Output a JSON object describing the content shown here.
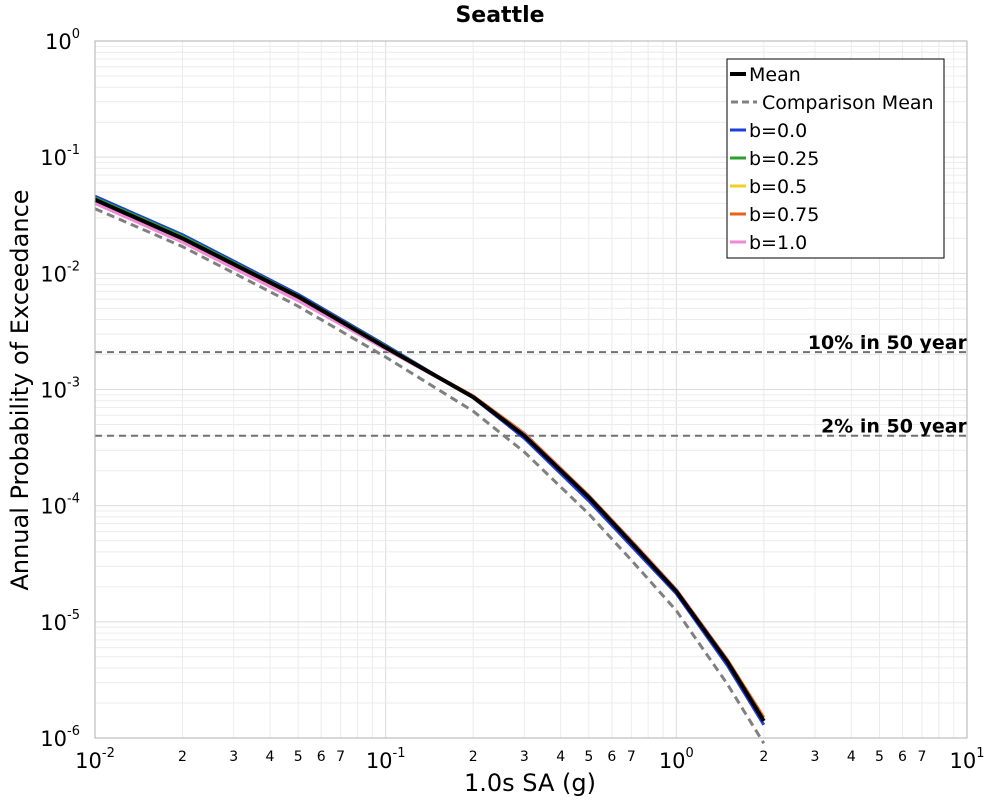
{
  "chart_data": {
    "type": "line",
    "title": "Seattle",
    "xlabel": "1.0s SA (g)",
    "ylabel": "Annual Probability of Exceedance",
    "x_scale": "log",
    "y_scale": "log",
    "xlim": [
      0.01,
      10
    ],
    "ylim": [
      1e-06,
      1
    ],
    "grid": true,
    "legend_position": "top-right",
    "x_major_ticks": [
      {
        "base": "10",
        "exp": "-2",
        "value": 0.01
      },
      {
        "base": "10",
        "exp": "-1",
        "value": 0.1
      },
      {
        "base": "10",
        "exp": "0",
        "value": 1
      },
      {
        "base": "10",
        "exp": "1",
        "value": 10
      }
    ],
    "y_major_ticks": [
      {
        "base": "10",
        "exp": "0",
        "value": 1
      },
      {
        "base": "10",
        "exp": "-1",
        "value": 0.1
      },
      {
        "base": "10",
        "exp": "-2",
        "value": 0.01
      },
      {
        "base": "10",
        "exp": "-3",
        "value": 0.001
      },
      {
        "base": "10",
        "exp": "-4",
        "value": 0.0001
      },
      {
        "base": "10",
        "exp": "-5",
        "value": 1e-05
      },
      {
        "base": "10",
        "exp": "-6",
        "value": 1e-06
      }
    ],
    "x_minor_tick_labels": [
      "2",
      "3",
      "4",
      "5",
      "6",
      "7"
    ],
    "reference_lines": [
      {
        "label": "10% in 50 year",
        "y": 0.0021
      },
      {
        "label": "2% in 50 year",
        "y": 0.0004
      }
    ],
    "series": [
      {
        "name": "b=0.0",
        "color": "#1f3fd8",
        "style": "solid",
        "points": [
          [
            0.01,
            0.046
          ],
          [
            0.02,
            0.0215
          ],
          [
            0.05,
            0.0066
          ],
          [
            0.1,
            0.0024
          ],
          [
            0.2,
            0.00085
          ],
          [
            0.3,
            0.00038
          ],
          [
            0.5,
            0.00011
          ],
          [
            0.7,
            4.5e-05
          ],
          [
            1.0,
            1.75e-05
          ],
          [
            1.5,
            4.2e-06
          ],
          [
            2.0,
            1.3e-06
          ]
        ]
      },
      {
        "name": "b=0.25",
        "color": "#2ca02c",
        "style": "solid",
        "points": [
          [
            0.01,
            0.0445
          ],
          [
            0.02,
            0.0208
          ],
          [
            0.05,
            0.0064
          ],
          [
            0.1,
            0.00235
          ],
          [
            0.2,
            0.00086
          ],
          [
            0.3,
            0.0004
          ],
          [
            0.5,
            0.000118
          ],
          [
            0.7,
            4.8e-05
          ],
          [
            1.0,
            1.83e-05
          ],
          [
            1.5,
            4.5e-06
          ],
          [
            2.0,
            1.4e-06
          ]
        ]
      },
      {
        "name": "b=0.5",
        "color": "#f0d020",
        "style": "solid",
        "points": [
          [
            0.01,
            0.043
          ],
          [
            0.02,
            0.02
          ],
          [
            0.05,
            0.0062
          ],
          [
            0.1,
            0.0023
          ],
          [
            0.2,
            0.00087
          ],
          [
            0.3,
            0.00041
          ],
          [
            0.5,
            0.00012
          ],
          [
            0.7,
            4.9e-05
          ],
          [
            1.0,
            1.85e-05
          ],
          [
            1.5,
            4.6e-06
          ],
          [
            2.0,
            1.4e-06
          ]
        ]
      },
      {
        "name": "b=0.75",
        "color": "#e8621a",
        "style": "solid",
        "points": [
          [
            0.01,
            0.042
          ],
          [
            0.02,
            0.0195
          ],
          [
            0.05,
            0.0061
          ],
          [
            0.1,
            0.00228
          ],
          [
            0.2,
            0.00088
          ],
          [
            0.3,
            0.00042
          ],
          [
            0.5,
            0.000122
          ],
          [
            0.7,
            5e-05
          ],
          [
            1.0,
            1.9e-05
          ],
          [
            1.5,
            4.7e-06
          ],
          [
            2.0,
            1.5e-06
          ]
        ]
      },
      {
        "name": "b=1.0",
        "color": "#f08ad8",
        "style": "solid",
        "points": [
          [
            0.01,
            0.04
          ],
          [
            0.02,
            0.0185
          ],
          [
            0.05,
            0.0058
          ],
          [
            0.1,
            0.00222
          ],
          [
            0.2,
            0.00086
          ],
          [
            0.3,
            0.00041
          ],
          [
            0.5,
            0.00012
          ],
          [
            0.7,
            4.9e-05
          ],
          [
            1.0,
            1.88e-05
          ],
          [
            1.5,
            4.6e-06
          ],
          [
            2.0,
            1.4e-06
          ]
        ]
      },
      {
        "name": "Comparison Mean",
        "color": "#808080",
        "style": "dashed",
        "points": [
          [
            0.01,
            0.036
          ],
          [
            0.02,
            0.017
          ],
          [
            0.05,
            0.0052
          ],
          [
            0.1,
            0.0019
          ],
          [
            0.2,
            0.00065
          ],
          [
            0.3,
            0.00029
          ],
          [
            0.5,
            8.5e-05
          ],
          [
            0.7,
            3.4e-05
          ],
          [
            1.0,
            1.25e-05
          ],
          [
            1.5,
            2.9e-06
          ],
          [
            2.0,
            9e-07
          ]
        ]
      },
      {
        "name": "Mean",
        "color": "#000000",
        "style": "solid",
        "points": [
          [
            0.01,
            0.043
          ],
          [
            0.02,
            0.02
          ],
          [
            0.05,
            0.0063
          ],
          [
            0.1,
            0.0023
          ],
          [
            0.2,
            0.00086
          ],
          [
            0.3,
            0.0004
          ],
          [
            0.5,
            0.000118
          ],
          [
            0.7,
            4.8e-05
          ],
          [
            1.0,
            1.83e-05
          ],
          [
            1.5,
            4.5e-06
          ],
          [
            2.0,
            1.4e-06
          ]
        ]
      }
    ],
    "legend_order": [
      "Mean",
      "Comparison Mean",
      "b=0.0",
      "b=0.25",
      "b=0.5",
      "b=0.75",
      "b=1.0"
    ]
  }
}
